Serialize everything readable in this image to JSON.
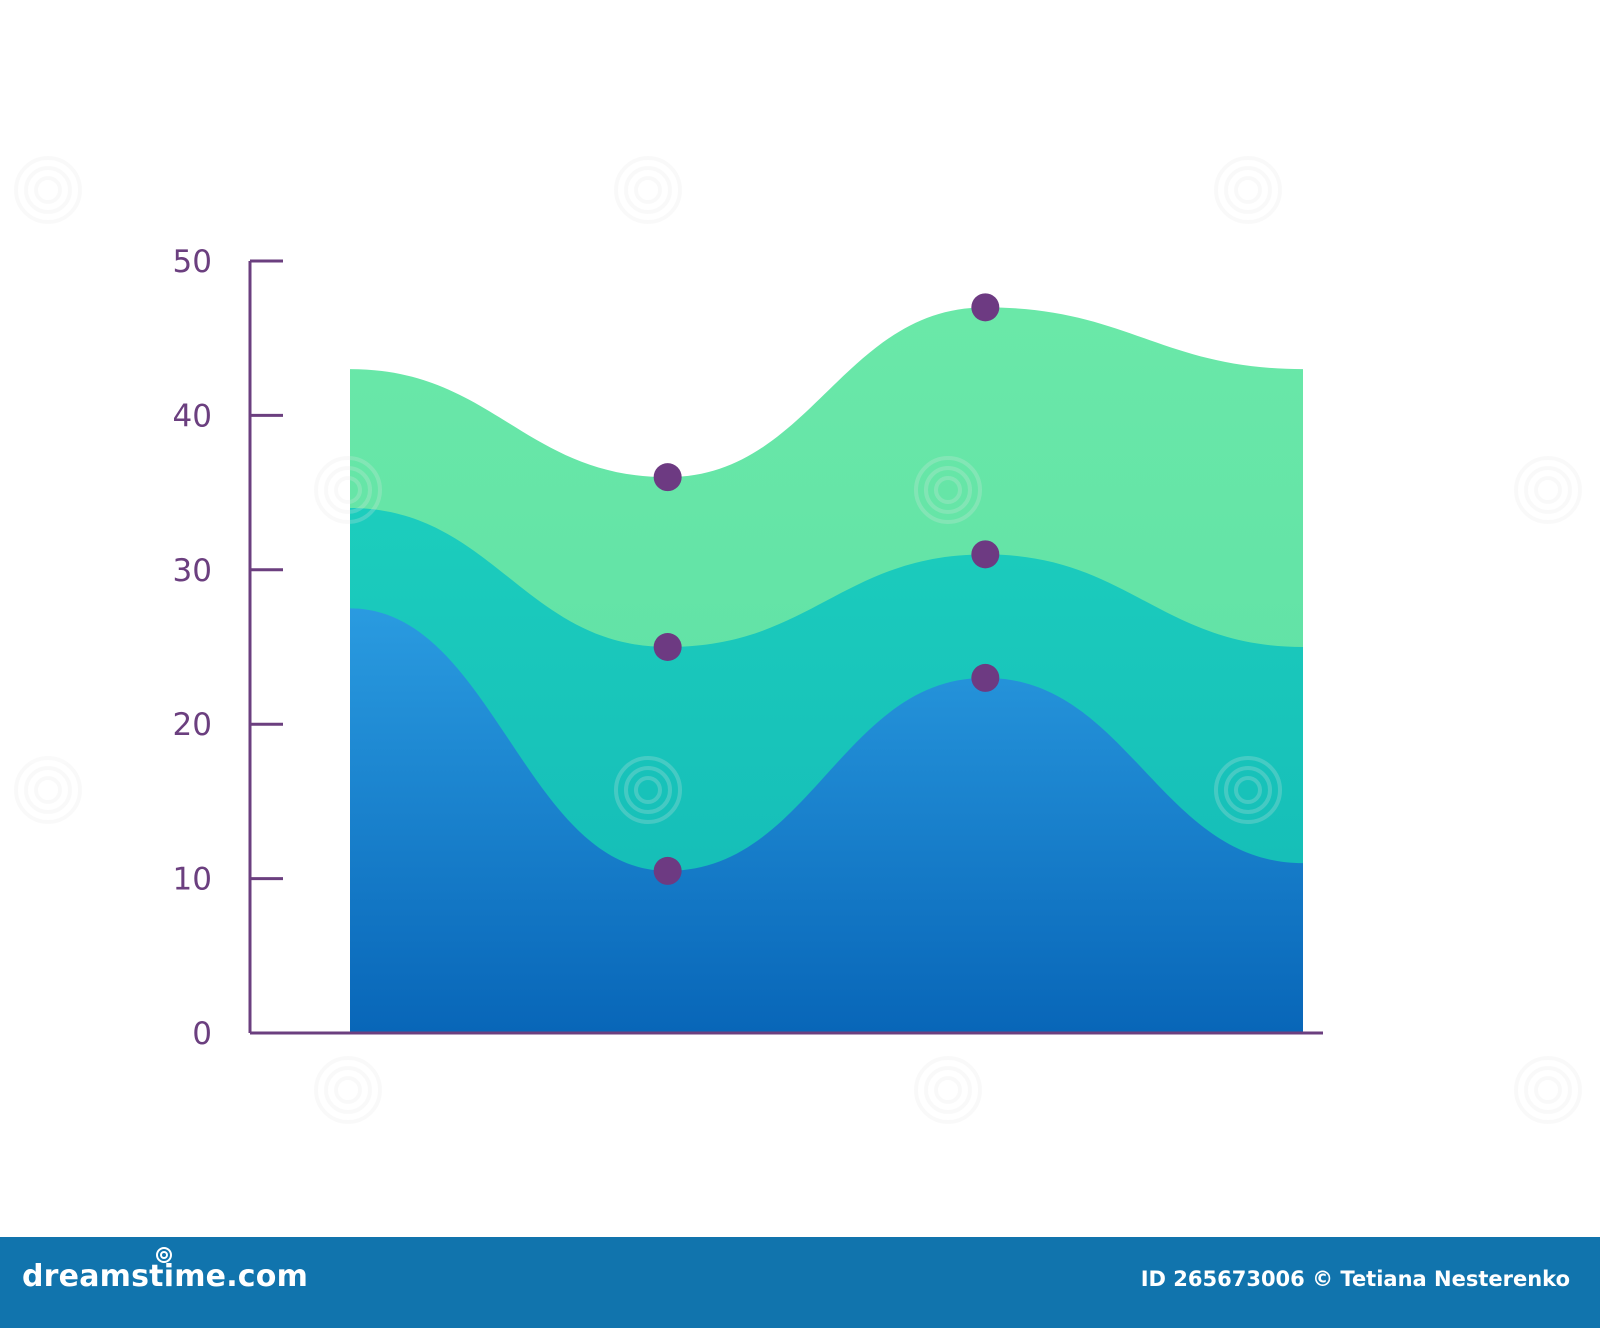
{
  "chart_data": {
    "type": "area",
    "stacked": true,
    "title": "",
    "xlabel": "",
    "ylabel": "",
    "ylim": [
      0,
      50
    ],
    "yticks": [
      0,
      10,
      20,
      30,
      40,
      50
    ],
    "tick_labels": [
      "0",
      "10",
      "20",
      "30",
      "40",
      "50"
    ],
    "x": [
      0,
      1,
      2,
      3
    ],
    "xlim": [
      0,
      3
    ],
    "grid": false,
    "legend": "none",
    "series": [
      {
        "values": [
          27.5,
          10.5,
          23,
          11
        ],
        "markers": [
          false,
          true,
          true,
          false
        ],
        "color_top": "#2a9be0",
        "color_bottom": "#0866b8"
      },
      {
        "values": [
          34,
          25,
          31,
          25
        ],
        "markers": [
          false,
          true,
          true,
          false
        ],
        "color_top": "#1ccdbd",
        "color_bottom": "#13b8b6"
      },
      {
        "values": [
          43,
          36,
          47,
          43
        ],
        "markers": [
          false,
          true,
          true,
          false
        ],
        "color_top": "#6ae8a8",
        "color_bottom": "#5adda5"
      }
    ],
    "colors": {
      "axis": "#6b3f7f",
      "marker": "#6d3a82"
    }
  },
  "footer": {
    "brand": "dreamstime.com",
    "credit": "ID 265673006 © Tetiana Nesterenko"
  },
  "watermark": {
    "text": "dreamstime",
    "icon": "swirl-icon"
  }
}
